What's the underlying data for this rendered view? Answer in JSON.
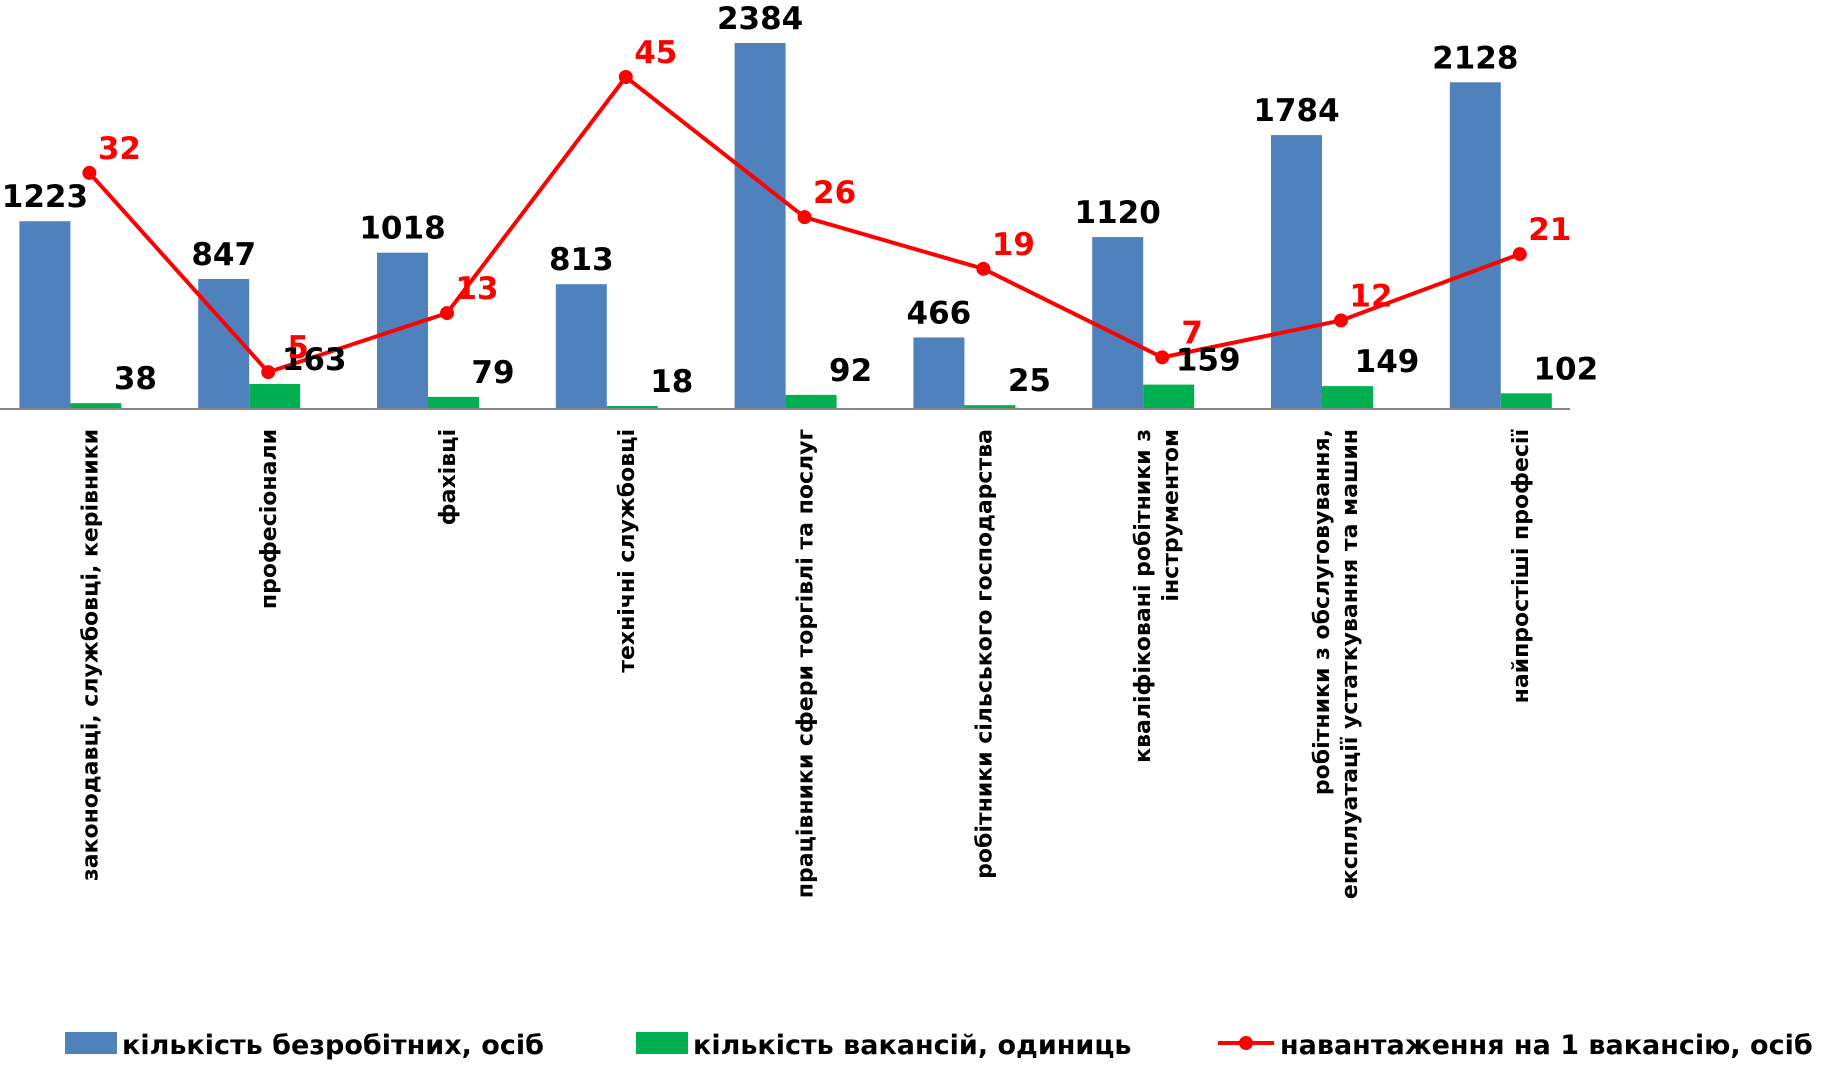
{
  "chart_data": {
    "type": "bar",
    "categories": [
      [
        "законодавці,  службовці, керівники"
      ],
      [
        "професіонали"
      ],
      [
        "фахівці"
      ],
      [
        "технічні службовці"
      ],
      [
        "працівники сфери торгівлі та послуг"
      ],
      [
        "робітники сільського господарства"
      ],
      [
        "кваліфіковані робітники з",
        "інструментом"
      ],
      [
        "робітники з обслуговування,",
        "експлуатації устаткування та машин"
      ],
      [
        "найпростіші професії"
      ]
    ],
    "series": [
      {
        "name": "кількість безробітних,  осіб",
        "type": "bar",
        "color": "#4f81bd",
        "values": [
          1223,
          847,
          1018,
          813,
          2384,
          466,
          1120,
          1784,
          2128
        ]
      },
      {
        "name": "кількість вакансій, одиниць",
        "type": "bar",
        "color": "#00b050",
        "values": [
          38,
          163,
          79,
          18,
          92,
          25,
          159,
          149,
          102
        ]
      },
      {
        "name": "навантаження на 1 вакансію, осіб",
        "type": "line",
        "color": "#ff0000",
        "values": [
          32,
          5,
          13,
          45,
          26,
          19,
          7,
          12,
          21
        ]
      }
    ],
    "legend_position": "bottom",
    "grid": false
  }
}
